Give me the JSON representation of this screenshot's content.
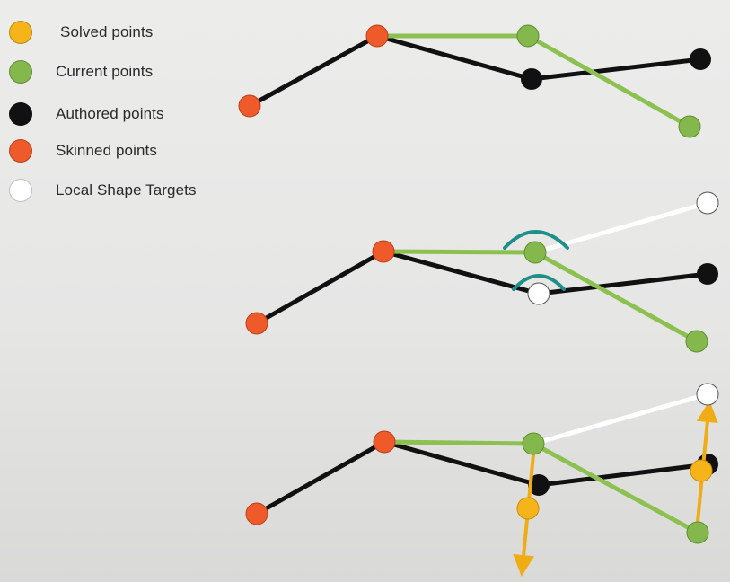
{
  "legend": {
    "items": [
      {
        "key": "solved",
        "label": "Solved points",
        "color": "#f5b41a"
      },
      {
        "key": "current",
        "label": "Current points",
        "color": "#84b84c"
      },
      {
        "key": "authored",
        "label": "Authored points",
        "color": "#111111"
      },
      {
        "key": "skinned",
        "label": "Skinned points",
        "color": "#ef5a2a"
      },
      {
        "key": "targets",
        "label": "Local Shape Targets",
        "color": "#ffffff"
      }
    ]
  },
  "colors": {
    "authored_line": "#111111",
    "current_line": "#8cc152",
    "target_line": "#ffffff",
    "solve_arrow": "#f0ac14",
    "falloff_arc": "#1f8f8a",
    "background": "#e8e8e7"
  }
}
